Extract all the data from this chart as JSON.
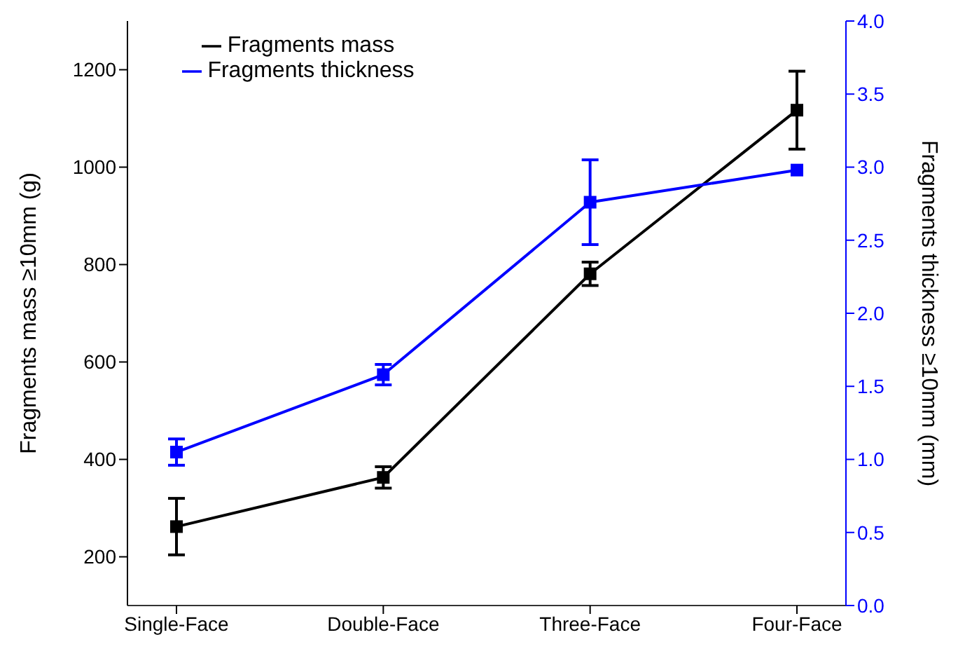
{
  "chart_data": {
    "type": "line",
    "categories": [
      "Single-Face",
      "Double-Face",
      "Three-Face",
      "Four-Face"
    ],
    "ylabel": "Fragments mass ≥10mm (g)",
    "y2label": "Fragments thickness ≥10mm (mm)",
    "ylim": [
      100,
      1300
    ],
    "yticks": [
      200,
      400,
      600,
      800,
      1000,
      1200
    ],
    "y2lim": [
      0,
      4
    ],
    "y2ticks": [
      {
        "value": 0,
        "label": "0.0"
      },
      {
        "value": 0.5,
        "label": "0.5"
      },
      {
        "value": 1,
        "label": "1.0"
      },
      {
        "value": 1.5,
        "label": "1.5"
      },
      {
        "value": 2,
        "label": "2.0"
      },
      {
        "value": 2.5,
        "label": "2.5"
      },
      {
        "value": 3,
        "label": "3.0"
      },
      {
        "value": 3.5,
        "label": "3.5"
      },
      {
        "value": 4,
        "label": "4.0"
      }
    ],
    "series": [
      {
        "name": "Fragments mass",
        "color": "#000000",
        "values": [
          262,
          363,
          781,
          1117
        ],
        "errors": [
          58,
          22,
          24,
          80
        ]
      },
      {
        "name": "Fragments thickness",
        "color": "#0000ff",
        "axis": "y2",
        "values": [
          1.05,
          1.58,
          2.76,
          2.98
        ],
        "errors": [
          0.09,
          0.07,
          0.29,
          null
        ]
      }
    ],
    "legend": "top left",
    "grid": false,
    "marker": "square",
    "line_style": "solid"
  }
}
